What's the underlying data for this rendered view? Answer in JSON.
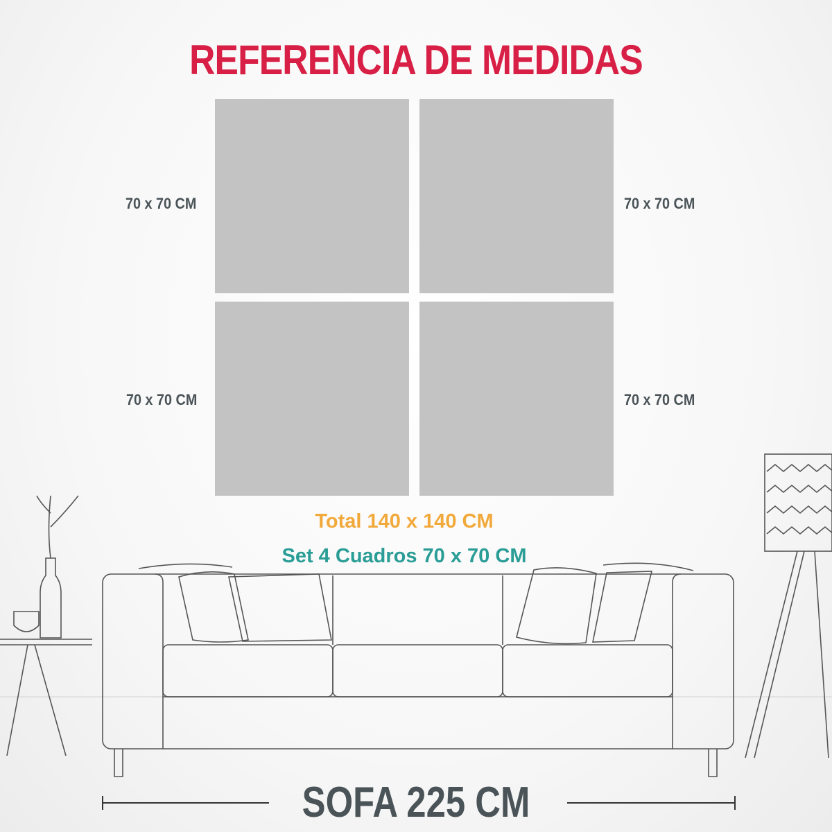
{
  "title": "REFERENCIA DE MEDIDAS",
  "panels": [
    {
      "label": "70 x 70 CM"
    },
    {
      "label": "70 x 70 CM"
    },
    {
      "label": "70 x 70 CM"
    },
    {
      "label": "70 x 70 CM"
    }
  ],
  "total": "Total 140 x 140 CM",
  "set": "Set 4 Cuadros 70 x 70 CM",
  "sofa_label": "SOFA 225 CM",
  "colors": {
    "title": "#d81f45",
    "total": "#f2a93b",
    "set": "#2a9d96",
    "text": "#4a5357",
    "panel": "#c3c3c3"
  }
}
